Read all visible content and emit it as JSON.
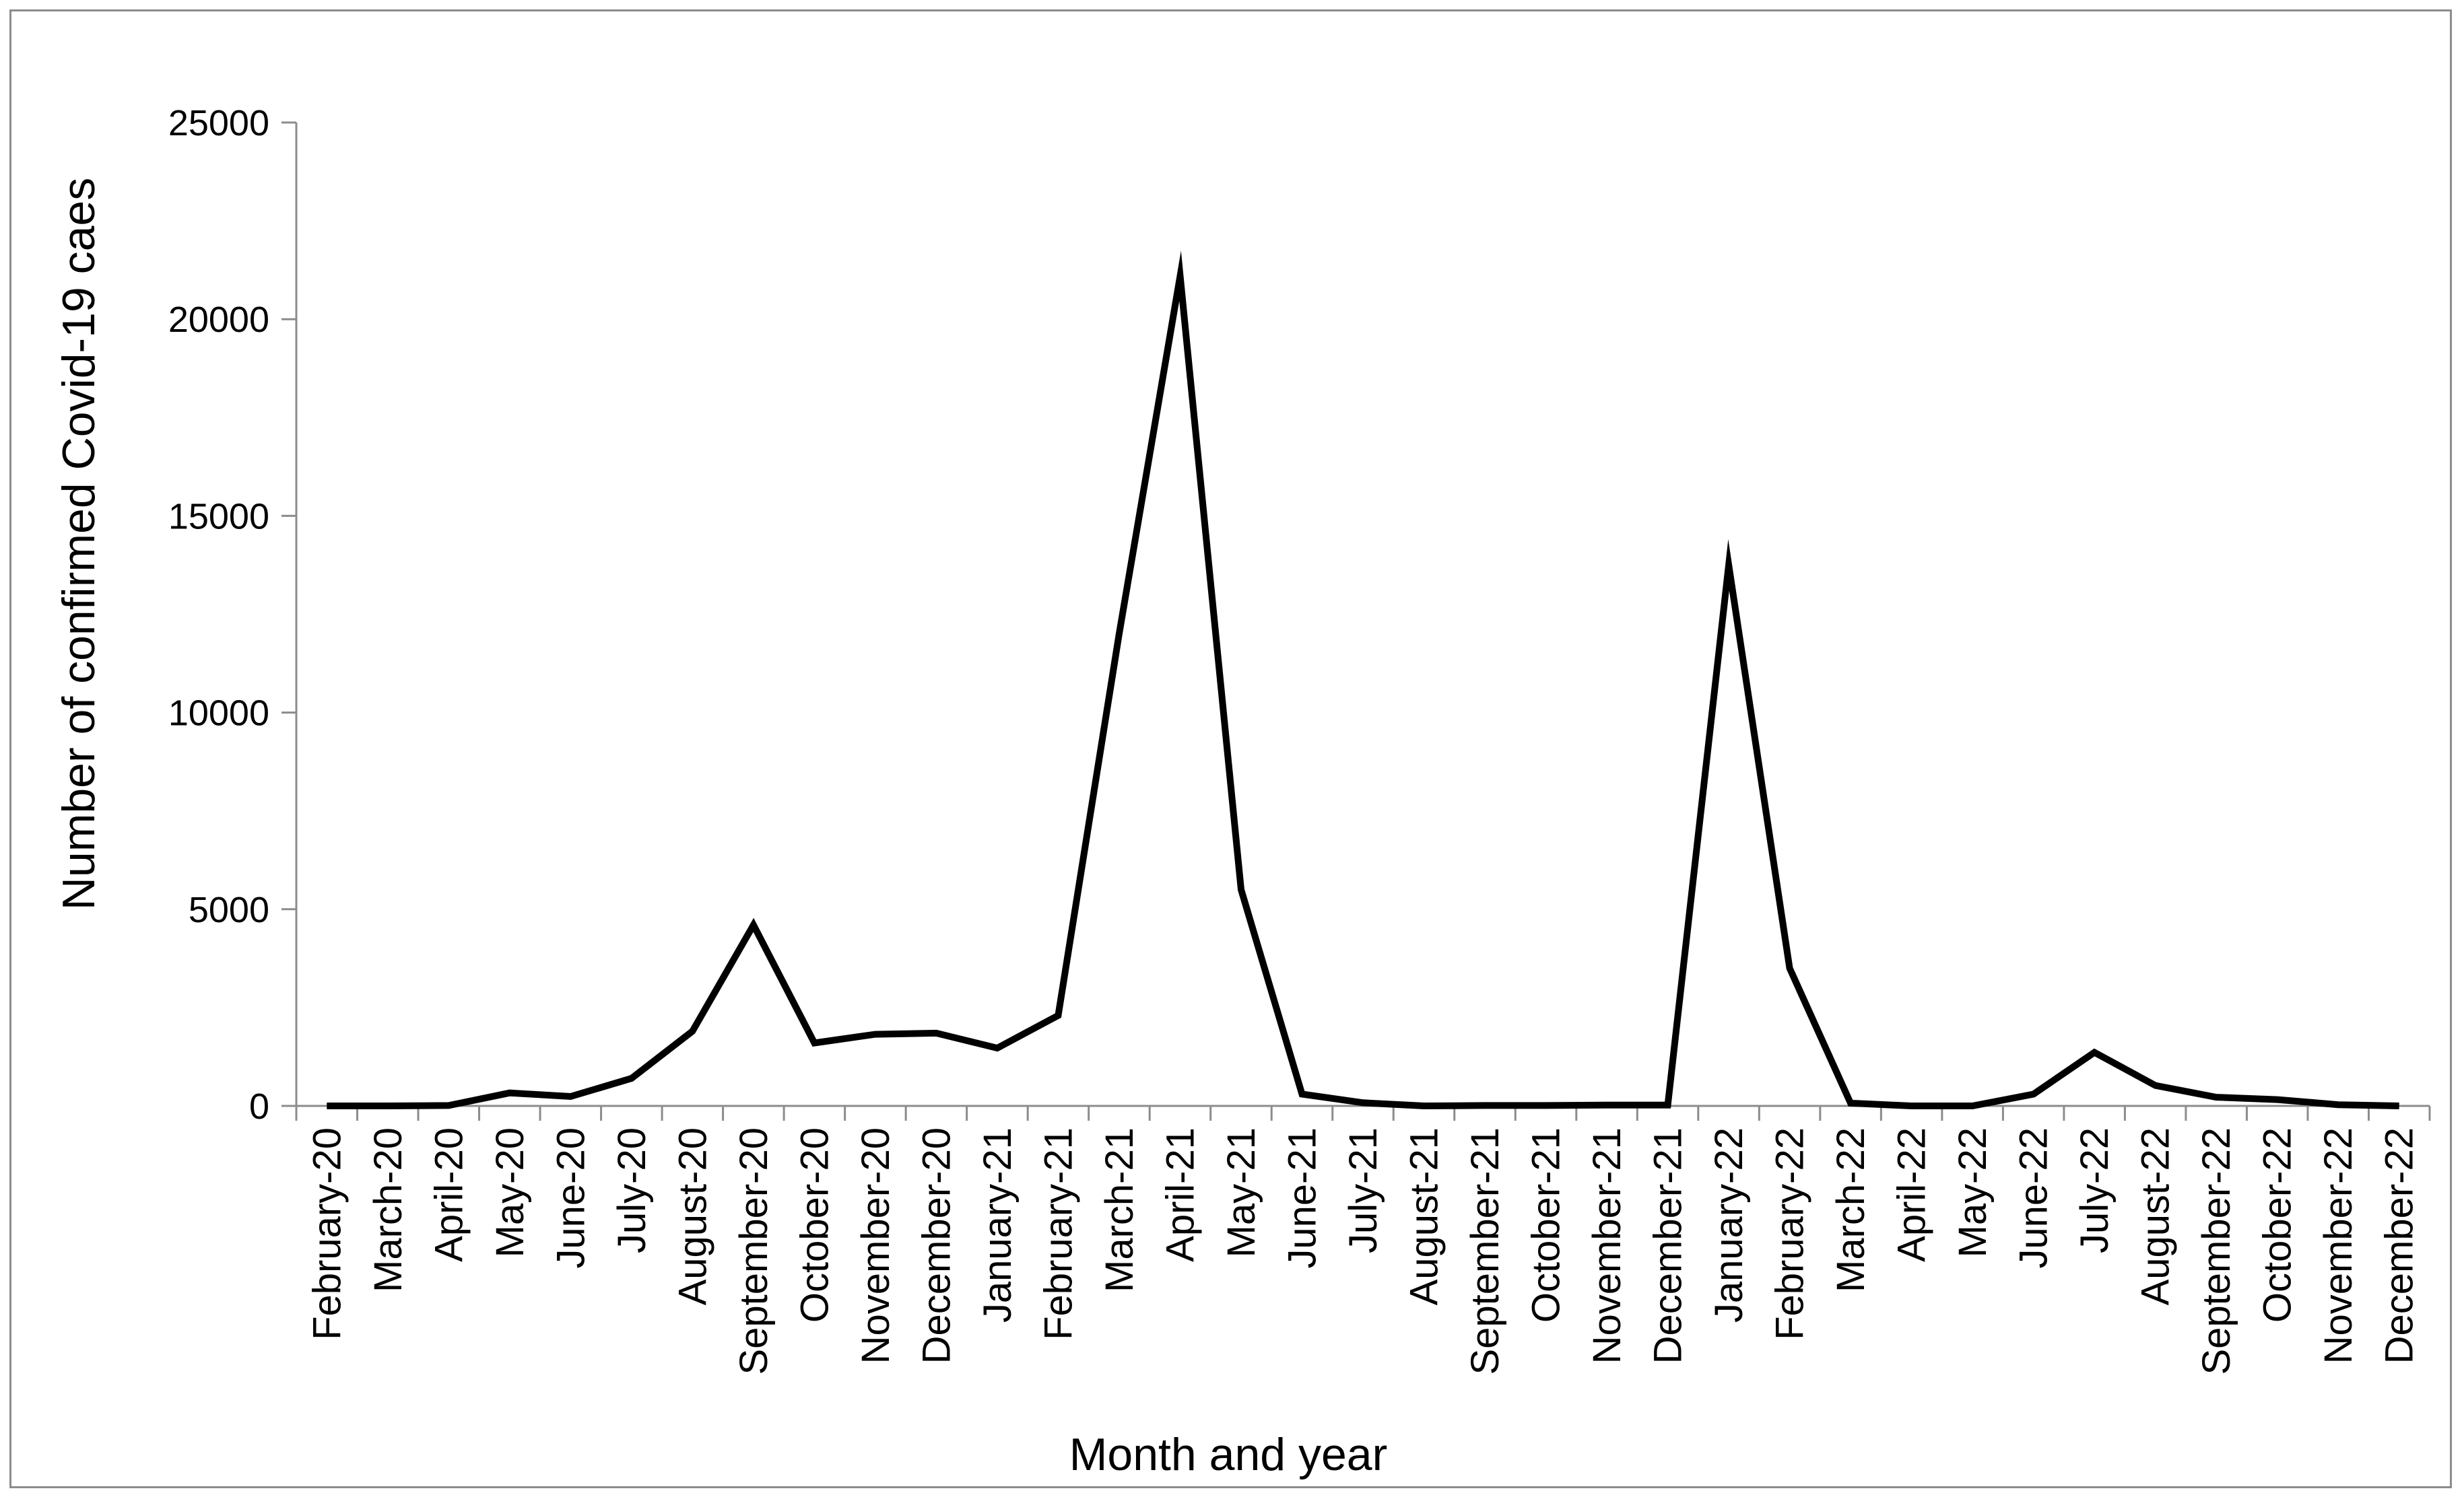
{
  "chart_data": {
    "type": "line",
    "xlabel": "Month and year",
    "ylabel": "Number of confirmed Covid-19 caes",
    "ylim": [
      0,
      25000
    ],
    "yticks": [
      0,
      5000,
      10000,
      15000,
      20000,
      25000
    ],
    "grid": false,
    "legend": "none",
    "line_color": "#000000",
    "categories": [
      "February-20",
      "March-20",
      "April-20",
      "May-20",
      "June-20",
      "July-20",
      "August-20",
      "September-20",
      "October-20",
      "November-20",
      "December-20",
      "January-21",
      "February-21",
      "March-21",
      "April-21",
      "May-21",
      "June-21",
      "July-21",
      "August-21",
      "September-21",
      "October-21",
      "November-21",
      "December-21",
      "January-22",
      "February-22",
      "March-22",
      "April-22",
      "May-22",
      "June-22",
      "July-22",
      "August-22",
      "September-22",
      "October-22",
      "November-22",
      "December-22"
    ],
    "series": [
      {
        "values": [
          0,
          0,
          10,
          330,
          240,
          700,
          1900,
          4600,
          1600,
          1820,
          1850,
          1470,
          2300,
          12000,
          21100,
          5500,
          300,
          80,
          0,
          10,
          10,
          20,
          20,
          13750,
          3500,
          70,
          0,
          0,
          300,
          1360,
          520,
          220,
          160,
          30,
          0
        ]
      }
    ]
  }
}
